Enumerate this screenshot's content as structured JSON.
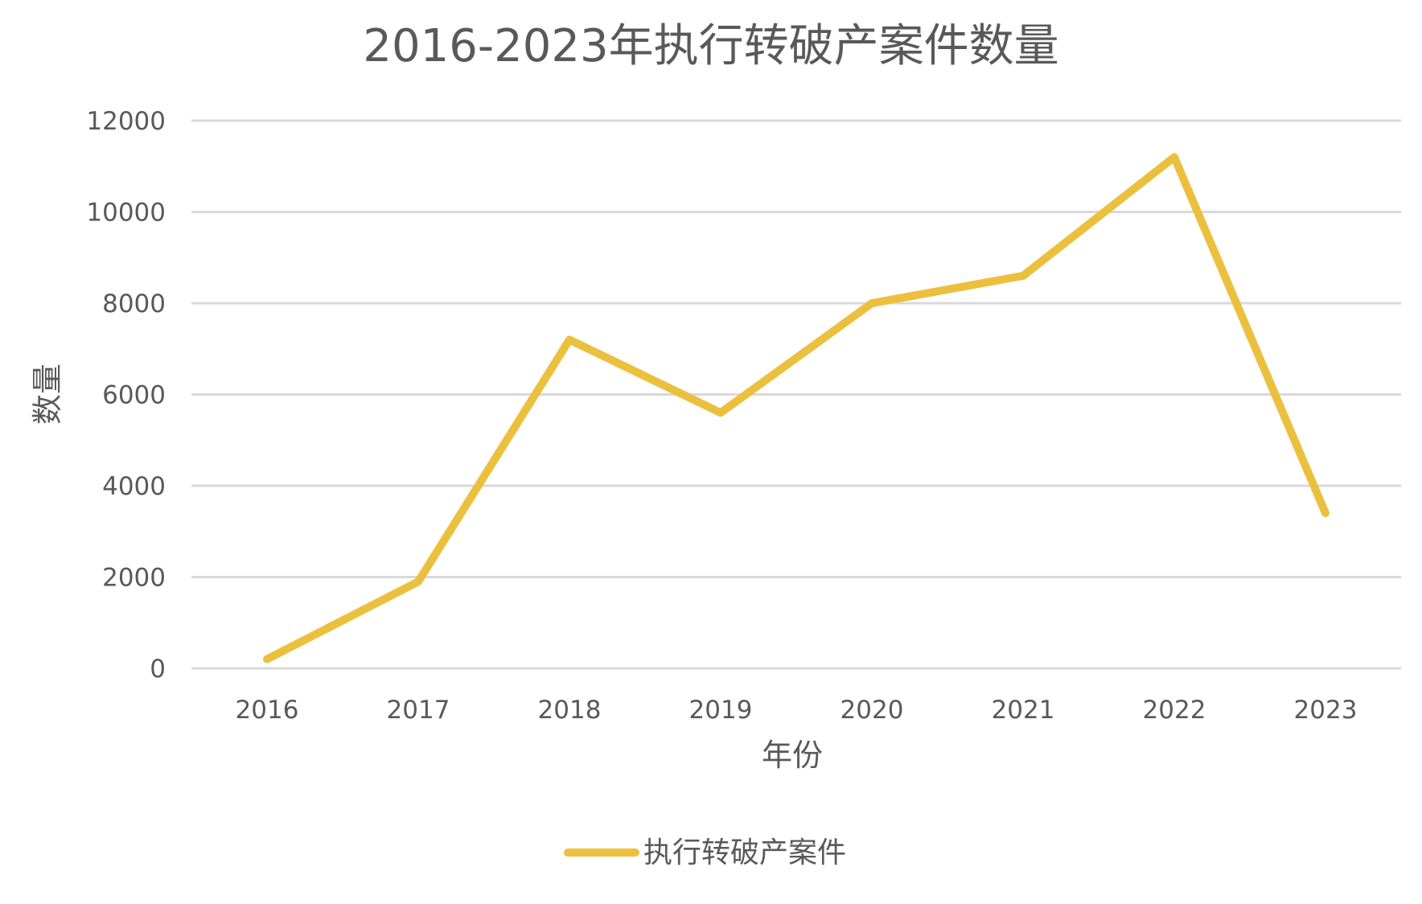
{
  "chart_data": {
    "type": "line",
    "title": "2016-2023年执行转破产案件数量",
    "xlabel": "年份",
    "ylabel": "数量",
    "categories": [
      "2016",
      "2017",
      "2018",
      "2019",
      "2020",
      "2021",
      "2022",
      "2023"
    ],
    "series": [
      {
        "name": "执行转破产案件",
        "values": [
          200,
          1900,
          7200,
          5600,
          8000,
          8600,
          11200,
          3400
        ],
        "color": "#ecc03f"
      }
    ],
    "ylim": [
      0,
      12000
    ],
    "yticks": [
      "0",
      "2000",
      "4000",
      "6000",
      "8000",
      "10000",
      "12000"
    ],
    "grid": true,
    "legend_position": "bottom"
  }
}
